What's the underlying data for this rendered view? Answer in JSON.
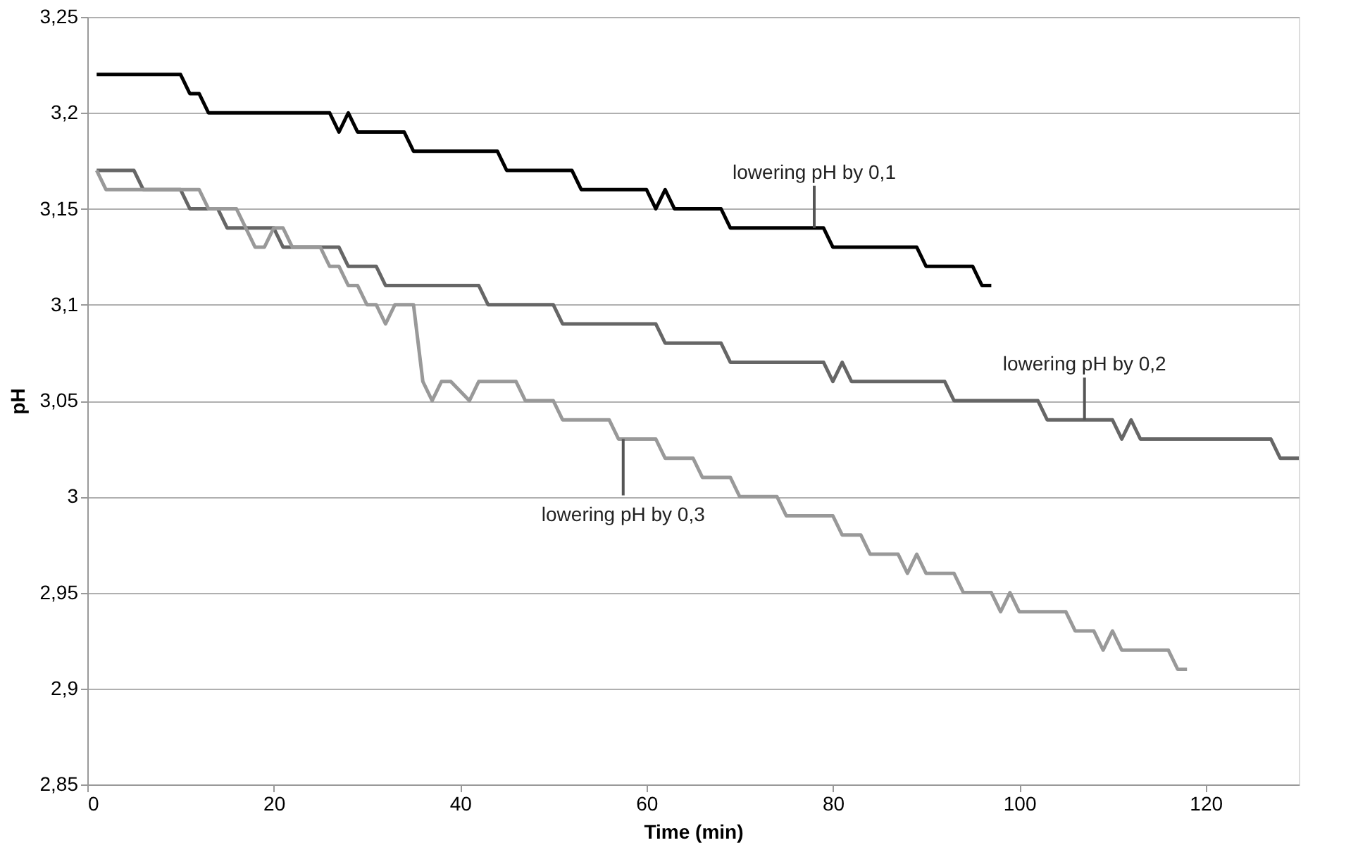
{
  "chart_data": {
    "type": "line",
    "xlabel": "Time (min)",
    "ylabel": "pH",
    "xlim": [
      0,
      130
    ],
    "xticks": [
      0,
      20,
      40,
      60,
      80,
      100,
      120
    ],
    "ylim": [
      2.85,
      3.25
    ],
    "yticks": [
      {
        "value": 2.85,
        "label": "2,85"
      },
      {
        "value": 2.9,
        "label": "2,9"
      },
      {
        "value": 2.95,
        "label": "2,95"
      },
      {
        "value": 3,
        "label": "3"
      },
      {
        "value": 3.05,
        "label": "3,05"
      },
      {
        "value": 3.1,
        "label": "3,1"
      },
      {
        "value": 3.15,
        "label": "3,15"
      },
      {
        "value": 3.2,
        "label": "3,2"
      },
      {
        "value": 3.25,
        "label": "3,25"
      }
    ],
    "grid": "y",
    "legend": false,
    "line_style": "solid",
    "marker": "none",
    "series": [
      {
        "color": "#000000",
        "x": [
          1,
          10,
          11,
          12,
          13,
          26,
          27,
          28,
          29,
          34,
          35,
          44,
          45,
          52,
          53,
          60,
          61,
          62,
          63,
          68,
          69,
          79,
          80,
          89,
          90,
          95,
          96,
          97
        ],
        "values": [
          3.22,
          3.22,
          3.21,
          3.21,
          3.2,
          3.2,
          3.19,
          3.2,
          3.19,
          3.19,
          3.18,
          3.18,
          3.17,
          3.17,
          3.16,
          3.16,
          3.15,
          3.16,
          3.15,
          3.15,
          3.14,
          3.14,
          3.13,
          3.13,
          3.12,
          3.12,
          3.11,
          3.11
        ]
      },
      {
        "color": "#666666",
        "x": [
          1,
          5,
          6,
          10,
          11,
          14,
          15,
          20,
          21,
          27,
          28,
          31,
          32,
          42,
          43,
          50,
          51,
          61,
          62,
          68,
          69,
          79,
          80,
          81,
          82,
          92,
          93,
          102,
          103,
          110,
          111,
          112,
          113,
          127,
          128,
          130
        ],
        "values": [
          3.17,
          3.17,
          3.16,
          3.16,
          3.15,
          3.15,
          3.14,
          3.14,
          3.13,
          3.13,
          3.12,
          3.12,
          3.11,
          3.11,
          3.1,
          3.1,
          3.09,
          3.09,
          3.08,
          3.08,
          3.07,
          3.07,
          3.06,
          3.07,
          3.06,
          3.06,
          3.05,
          3.05,
          3.04,
          3.04,
          3.03,
          3.04,
          3.03,
          3.03,
          3.02,
          3.02
        ]
      },
      {
        "color": "#999999",
        "x": [
          1,
          2,
          12,
          13,
          16,
          17,
          18,
          19,
          20,
          21,
          22,
          25,
          26,
          27,
          28,
          29,
          30,
          31,
          32,
          33,
          35,
          36,
          37,
          38,
          39,
          41,
          42,
          43,
          46,
          47,
          50,
          51,
          56,
          57,
          61,
          62,
          65,
          66,
          69,
          70,
          74,
          75,
          80,
          81,
          83,
          84,
          87,
          88,
          89,
          90,
          93,
          94,
          97,
          98,
          99,
          100,
          105,
          106,
          108,
          109,
          110,
          111,
          116,
          117,
          118
        ],
        "values": [
          3.17,
          3.16,
          3.16,
          3.15,
          3.15,
          3.14,
          3.13,
          3.13,
          3.14,
          3.14,
          3.13,
          3.13,
          3.12,
          3.12,
          3.11,
          3.11,
          3.1,
          3.1,
          3.09,
          3.1,
          3.1,
          3.06,
          3.05,
          3.06,
          3.06,
          3.05,
          3.06,
          3.06,
          3.06,
          3.05,
          3.05,
          3.04,
          3.04,
          3.03,
          3.03,
          3.02,
          3.02,
          3.01,
          3.01,
          3.0,
          3.0,
          2.99,
          2.99,
          2.98,
          2.98,
          2.97,
          2.97,
          2.96,
          2.97,
          2.96,
          2.96,
          2.95,
          2.95,
          2.94,
          2.95,
          2.94,
          2.94,
          2.93,
          2.93,
          2.92,
          2.93,
          2.92,
          2.92,
          2.91,
          2.91
        ]
      }
    ],
    "annotations": [
      {
        "text": "lowering pH by 0,1",
        "x": 78,
        "y": 3.14
      },
      {
        "text": "lowering pH by 0,2",
        "x": 107,
        "y": 3.04
      },
      {
        "text": "lowering pH by 0,3",
        "x": 57.5,
        "y": 3.03
      }
    ]
  }
}
